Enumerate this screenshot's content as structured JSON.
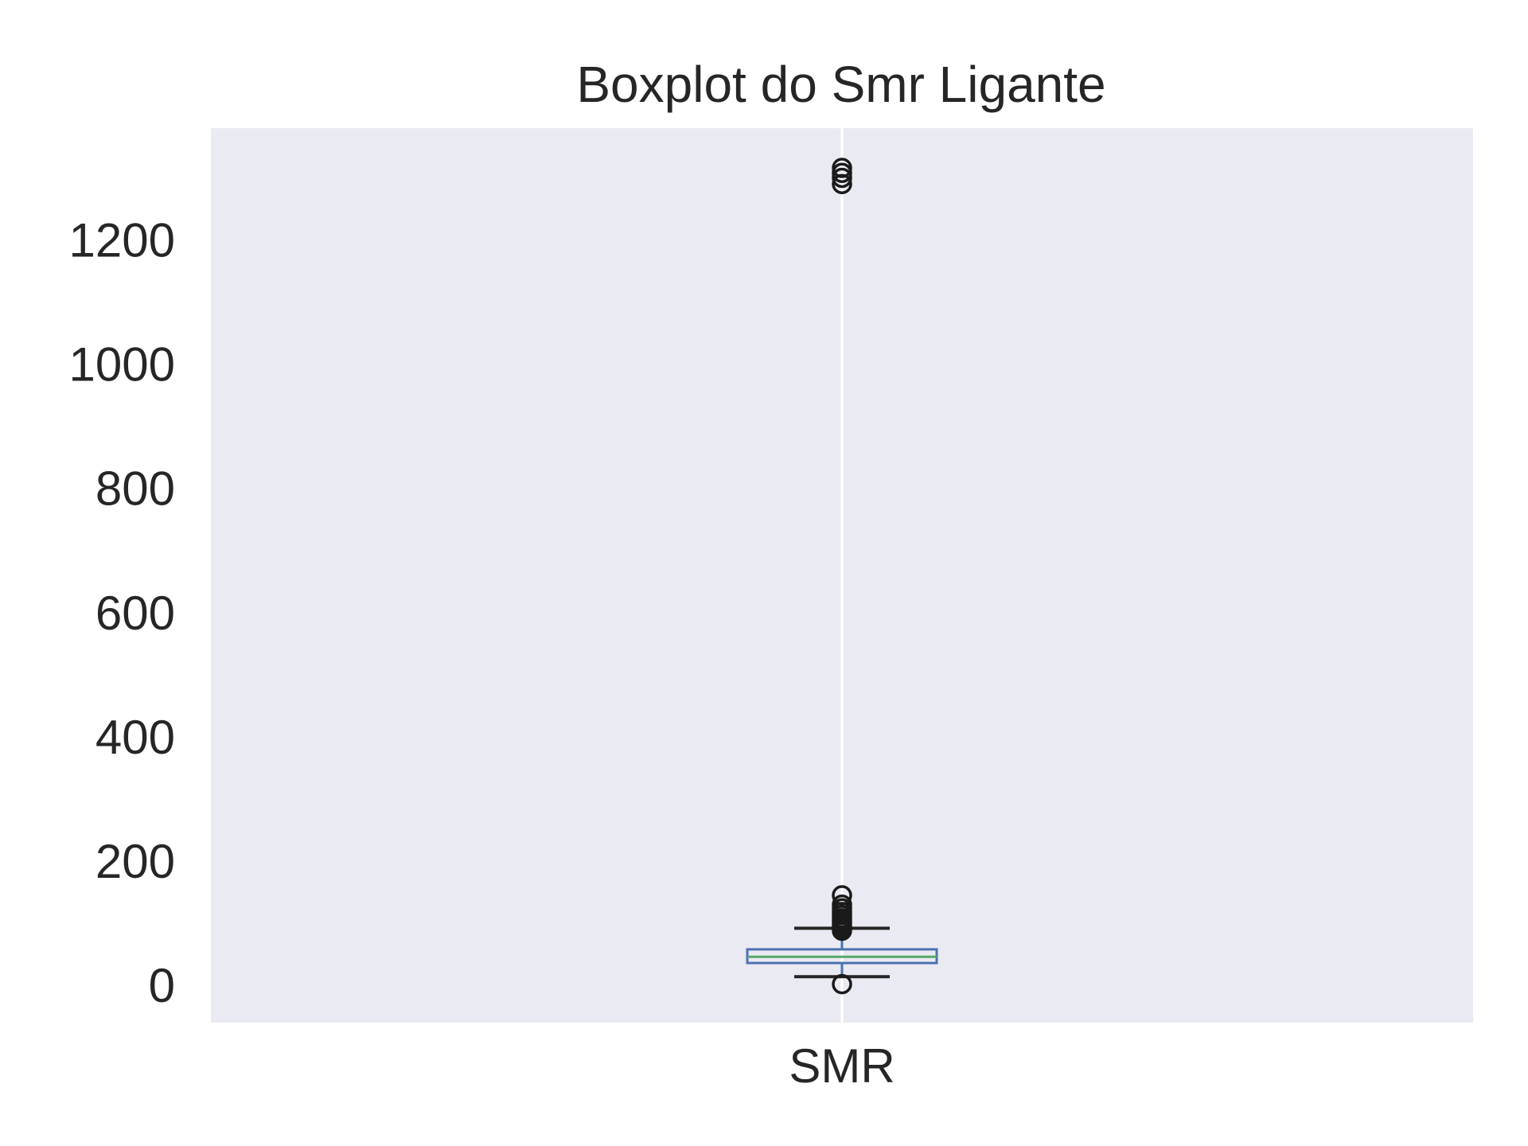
{
  "chart_data": {
    "type": "boxplot",
    "title": "Boxplot do Smr Ligante",
    "xlabel": "",
    "ylabel": "",
    "categories": [
      "SMR"
    ],
    "ylim": [
      -60,
      1380
    ],
    "yticks": [
      0,
      200,
      400,
      600,
      800,
      1000,
      1200
    ],
    "grid": true,
    "legend": "none",
    "boxes": [
      {
        "category": "SMR",
        "whisker_low": 14,
        "q1": 36,
        "median": 46,
        "q3": 58,
        "whisker_high": 92,
        "outliers": [
          2,
          88,
          92,
          96,
          100,
          104,
          108,
          113,
          118,
          124,
          130,
          145,
          1290,
          1300,
          1308,
          1316
        ]
      }
    ],
    "colors": {
      "background": "#eaeaf2",
      "grid": "#ffffff",
      "box": "#4c72b0",
      "median": "#55a868",
      "whisker": "#262626",
      "outlier": "#1a1a1a"
    }
  }
}
